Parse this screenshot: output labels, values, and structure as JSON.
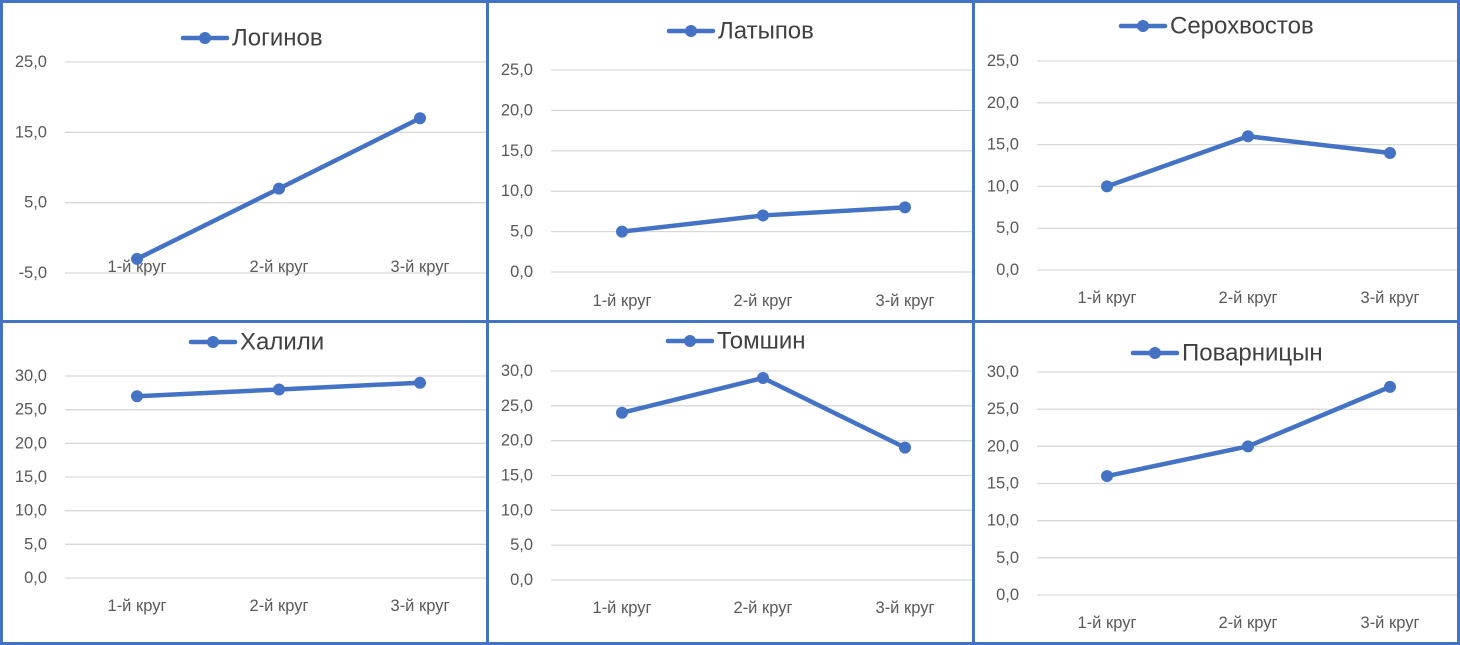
{
  "chart_data": [
    {
      "type": "line",
      "title": "Логинов",
      "categories": [
        "1-й круг",
        "2-й круг",
        "3-й круг"
      ],
      "series": [
        {
          "name": "Логинов",
          "values": [
            -3,
            7,
            17
          ]
        }
      ],
      "yticks": [
        -5,
        5,
        15,
        25
      ],
      "ytick_labels": [
        "-5,0",
        "5,0",
        "15,0",
        "25,0"
      ],
      "ylim": [
        -5,
        25
      ],
      "grid": true,
      "legend": "top",
      "color": "#4472C4"
    },
    {
      "type": "line",
      "title": "Латыпов",
      "categories": [
        "1-й круг",
        "2-й круг",
        "3-й круг"
      ],
      "series": [
        {
          "name": "Латыпов",
          "values": [
            5,
            7,
            8
          ]
        }
      ],
      "yticks": [
        0,
        5,
        10,
        15,
        20,
        25
      ],
      "ytick_labels": [
        "0,0",
        "5,0",
        "10,0",
        "15,0",
        "20,0",
        "25,0"
      ],
      "ylim": [
        0,
        25
      ],
      "grid": true,
      "legend": "top",
      "color": "#4472C4"
    },
    {
      "type": "line",
      "title": "Серохвостов",
      "categories": [
        "1-й круг",
        "2-й круг",
        "3-й круг"
      ],
      "series": [
        {
          "name": "Серохвостов",
          "values": [
            10,
            16,
            14
          ]
        }
      ],
      "yticks": [
        0,
        5,
        10,
        15,
        20,
        25
      ],
      "ytick_labels": [
        "0,0",
        "5,0",
        "10,0",
        "15,0",
        "20,0",
        "25,0"
      ],
      "ylim": [
        0,
        25
      ],
      "grid": true,
      "legend": "top",
      "color": "#4472C4"
    },
    {
      "type": "line",
      "title": "Халили",
      "categories": [
        "1-й круг",
        "2-й круг",
        "3-й круг"
      ],
      "series": [
        {
          "name": "Халили",
          "values": [
            27,
            28,
            29
          ]
        }
      ],
      "yticks": [
        0,
        5,
        10,
        15,
        20,
        25,
        30
      ],
      "ytick_labels": [
        "0,0",
        "5,0",
        "10,0",
        "15,0",
        "20,0",
        "25,0",
        "30,0"
      ],
      "ylim": [
        0,
        30
      ],
      "grid": true,
      "legend": "top",
      "color": "#4472C4"
    },
    {
      "type": "line",
      "title": "Томшин",
      "categories": [
        "1-й круг",
        "2-й круг",
        "3-й круг"
      ],
      "series": [
        {
          "name": "Томшин",
          "values": [
            24,
            29,
            19
          ]
        }
      ],
      "yticks": [
        0,
        5,
        10,
        15,
        20,
        25,
        30
      ],
      "ytick_labels": [
        "0,0",
        "5,0",
        "10,0",
        "15,0",
        "20,0",
        "25,0",
        "30,0"
      ],
      "ylim": [
        0,
        30
      ],
      "grid": true,
      "legend": "top",
      "color": "#4472C4"
    },
    {
      "type": "line",
      "title": "Поварницын",
      "categories": [
        "1-й круг",
        "2-й круг",
        "3-й круг"
      ],
      "series": [
        {
          "name": "Поварницын",
          "values": [
            16,
            20,
            28
          ]
        }
      ],
      "yticks": [
        0,
        5,
        10,
        15,
        20,
        25,
        30
      ],
      "ytick_labels": [
        "0,0",
        "5,0",
        "10,0",
        "15,0",
        "20,0",
        "25,0",
        "30,0"
      ],
      "ylim": [
        0,
        30
      ],
      "grid": true,
      "legend": "top",
      "color": "#4472C4"
    }
  ]
}
